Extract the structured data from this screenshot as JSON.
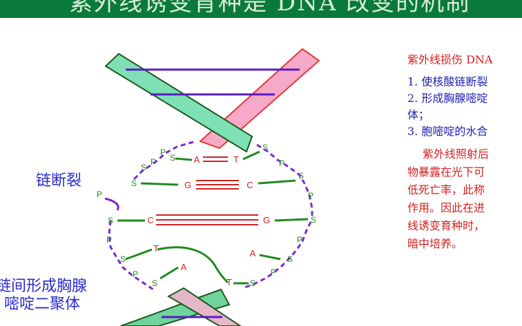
{
  "banner": {
    "title": "紫外线诱变育种是 DNA 改变的机制",
    "bg_color": "#0a7a3a"
  },
  "diagram": {
    "phosphate": "P",
    "sugar": "S",
    "bases": {
      "a1": "A",
      "t1": "T",
      "g2": "G",
      "c2": "C",
      "c3": "C",
      "g3": "G",
      "t4": "T",
      "a4": "A",
      "a5": "A",
      "t5": "T"
    },
    "label_break": "链断裂",
    "label_dimer_1": "链间形成胸腺",
    "label_dimer_2": "嘧啶二聚体"
  },
  "notes": {
    "heading": "紫外线损伤 DNA",
    "items": [
      "1. 使核酸链断裂",
      "2. 形成胸腺嘧啶",
      "体；",
      "3. 胞嘧啶的水合"
    ],
    "paragraph": [
      "紫外线照射后",
      "物暴露在光下可",
      "低死亡率，此称",
      "作用。因此在进",
      "线诱变育种时，",
      "暗中培养。"
    ]
  },
  "colors": {
    "backbone": "#7a2ad0",
    "pair_lines": "#d42020",
    "strand_green": "#1e8a1e",
    "ribbon_teal": "#7ee0b4",
    "ribbon_pink": "#f7a9c8",
    "ribbon_border": "#e23a3a",
    "ribbon_dark": "#1b5a1b",
    "rung_purple": "#5a1ac8"
  }
}
